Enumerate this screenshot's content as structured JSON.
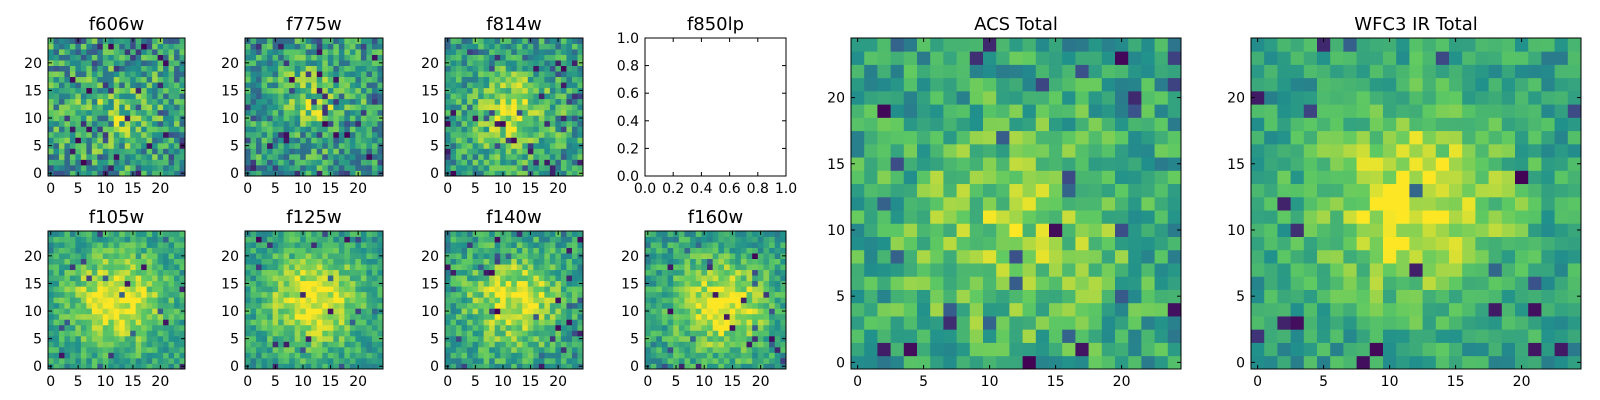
{
  "figure": {
    "description_type": "grid of astronomical image cutout panels",
    "colormap": [
      "#440154",
      "#3b528b",
      "#21918c",
      "#5ec962",
      "#fde725"
    ]
  },
  "chart_data": [
    {
      "type": "heatmap",
      "title": "f606w",
      "size": 25,
      "xticks": [
        "0",
        "5",
        "10",
        "15",
        "20"
      ],
      "yticks": [
        "0",
        "5",
        "10",
        "15",
        "20"
      ],
      "seed": 11,
      "center": [
        12,
        11
      ],
      "sigma": 5.0,
      "peak": 0.18,
      "noise": 0.55,
      "outliers": 0.1
    },
    {
      "type": "heatmap",
      "title": "f775w",
      "size": 25,
      "xticks": [
        "0",
        "5",
        "10",
        "15",
        "20"
      ],
      "yticks": [
        "0",
        "5",
        "10",
        "15",
        "20"
      ],
      "seed": 23,
      "center": [
        12,
        13
      ],
      "sigma": 5.0,
      "peak": 0.22,
      "noise": 0.5,
      "outliers": 0.08
    },
    {
      "type": "heatmap",
      "title": "f814w",
      "size": 25,
      "xticks": [
        "0",
        "5",
        "10",
        "15",
        "20"
      ],
      "yticks": [
        "0",
        "5",
        "10",
        "15",
        "20"
      ],
      "seed": 37,
      "center": [
        12,
        11
      ],
      "sigma": 5.5,
      "peak": 0.3,
      "noise": 0.45,
      "outliers": 0.07
    },
    {
      "type": "empty",
      "title": "f850lp",
      "xlim": [
        0,
        1
      ],
      "ylim": [
        0,
        1
      ],
      "xticks": [
        "0.0",
        "0.2",
        "0.4",
        "0.6",
        "0.8",
        "1.0"
      ],
      "yticks": [
        "0.0",
        "0.2",
        "0.4",
        "0.6",
        "0.8",
        "1.0"
      ]
    },
    {
      "type": "heatmap",
      "title": "f105w",
      "size": 25,
      "xticks": [
        "0",
        "5",
        "10",
        "15",
        "20"
      ],
      "yticks": [
        "0",
        "5",
        "10",
        "15",
        "20"
      ],
      "seed": 41,
      "center": [
        12,
        12
      ],
      "sigma": 6.0,
      "peak": 0.45,
      "noise": 0.32,
      "outliers": 0.04
    },
    {
      "type": "heatmap",
      "title": "f125w",
      "size": 25,
      "xticks": [
        "0",
        "5",
        "10",
        "15",
        "20"
      ],
      "yticks": [
        "0",
        "5",
        "10",
        "15",
        "20"
      ],
      "seed": 53,
      "center": [
        12,
        12
      ],
      "sigma": 6.0,
      "peak": 0.45,
      "noise": 0.32,
      "outliers": 0.04
    },
    {
      "type": "heatmap",
      "title": "f140w",
      "size": 25,
      "xticks": [
        "0",
        "5",
        "10",
        "15",
        "20"
      ],
      "yticks": [
        "0",
        "5",
        "10",
        "15",
        "20"
      ],
      "seed": 67,
      "center": [
        12,
        12
      ],
      "sigma": 6.0,
      "peak": 0.4,
      "noise": 0.36,
      "outliers": 0.05
    },
    {
      "type": "heatmap",
      "title": "f160w",
      "size": 25,
      "xticks": [
        "0",
        "5",
        "10",
        "15",
        "20"
      ],
      "yticks": [
        "0",
        "5",
        "10",
        "15",
        "20"
      ],
      "seed": 79,
      "center": [
        13,
        11
      ],
      "sigma": 6.0,
      "peak": 0.42,
      "noise": 0.34,
      "outliers": 0.05
    },
    {
      "type": "heatmap",
      "title": "ACS Total",
      "size": 25,
      "xticks": [
        "0",
        "5",
        "10",
        "15",
        "20"
      ],
      "yticks": [
        "0",
        "5",
        "10",
        "15",
        "20"
      ],
      "seed": 97,
      "center": [
        12,
        10
      ],
      "sigma": 6.5,
      "peak": 0.28,
      "noise": 0.38,
      "outliers": 0.05
    },
    {
      "type": "heatmap",
      "title": "WFC3 IR Total",
      "size": 25,
      "xticks": [
        "0",
        "5",
        "10",
        "15",
        "20"
      ],
      "yticks": [
        "0",
        "5",
        "10",
        "15",
        "20"
      ],
      "seed": 113,
      "center": [
        12,
        12
      ],
      "sigma": 5.5,
      "peak": 0.42,
      "noise": 0.3,
      "outliers": 0.04
    }
  ]
}
